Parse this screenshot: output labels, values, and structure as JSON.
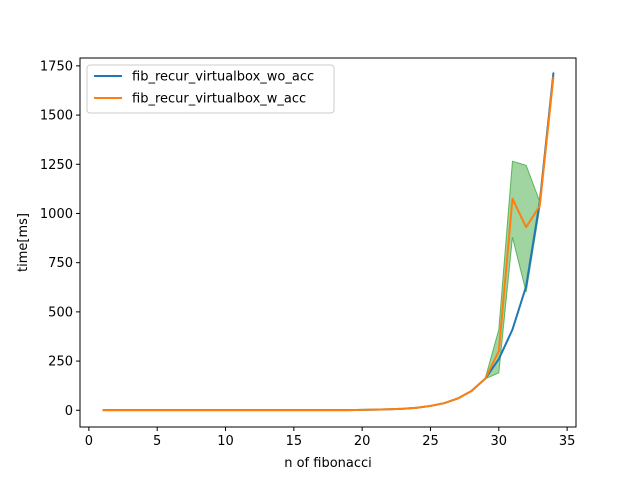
{
  "chart_data": {
    "type": "line",
    "title": "",
    "xlabel": "n of fibonacci",
    "ylabel": "time[ms]",
    "xlim": [
      -0.65,
      35.65
    ],
    "ylim": [
      -85,
      1790
    ],
    "x_ticks": [
      0,
      5,
      10,
      15,
      20,
      25,
      30,
      35
    ],
    "y_ticks": [
      0,
      250,
      500,
      750,
      1000,
      1250,
      1500,
      1750
    ],
    "grid": false,
    "legend_position": "top-left",
    "x": [
      1,
      2,
      3,
      4,
      5,
      6,
      7,
      8,
      9,
      10,
      11,
      12,
      13,
      14,
      15,
      16,
      17,
      18,
      19,
      20,
      21,
      22,
      23,
      24,
      25,
      26,
      27,
      28,
      29,
      30,
      31,
      32,
      33,
      34
    ],
    "series": [
      {
        "name": "fib_recur_virtualbox_wo_acc",
        "color": "#1f77b4",
        "values": [
          1,
          1,
          1,
          1,
          1,
          1,
          1,
          1,
          1,
          1,
          1,
          1,
          1,
          1,
          1,
          1,
          1,
          1,
          1,
          2,
          3,
          5,
          8,
          13,
          22,
          36,
          60,
          98,
          160,
          260,
          410,
          630,
          1060,
          1715
        ]
      },
      {
        "name": "fib_recur_virtualbox_w_acc",
        "color": "#ff7f0e",
        "values": [
          1,
          1,
          1,
          1,
          1,
          1,
          1,
          1,
          1,
          1,
          1,
          1,
          1,
          1,
          1,
          1,
          1,
          1,
          1,
          2,
          3,
          5,
          8,
          13,
          22,
          36,
          60,
          98,
          160,
          300,
          1075,
          930,
          1040,
          1695
        ]
      }
    ],
    "band": {
      "color": "#2ca02c",
      "opacity": 0.45,
      "lower": [
        1,
        1,
        1,
        1,
        1,
        1,
        1,
        1,
        1,
        1,
        1,
        1,
        1,
        1,
        1,
        1,
        1,
        1,
        1,
        2,
        3,
        5,
        8,
        13,
        22,
        36,
        60,
        98,
        160,
        190,
        880,
        600,
        1030,
        1680
      ],
      "upper": [
        1,
        1,
        1,
        1,
        1,
        1,
        1,
        1,
        1,
        1,
        1,
        1,
        1,
        1,
        1,
        1,
        1,
        1,
        1,
        2,
        3,
        5,
        8,
        13,
        22,
        36,
        60,
        98,
        160,
        410,
        1265,
        1245,
        1060,
        1720
      ]
    }
  }
}
